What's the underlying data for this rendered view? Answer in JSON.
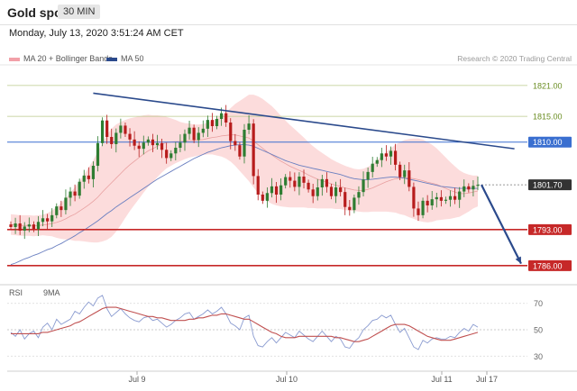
{
  "header": {
    "title": "Gold spot",
    "timeframe": "30 MIN"
  },
  "timestamp": "Monday, July 13, 2020 3:51:24 AM CET",
  "legend": {
    "bollinger": "MA 20 + Bollinger Bands",
    "ma50": "MA 50"
  },
  "credit": "Research © 2020 Trading Central",
  "rsi_legend": {
    "rsi": "RSI",
    "ma": "9MA"
  },
  "colors": {
    "bull": "#2e7d32",
    "bear": "#b71c1c",
    "bands_fill": "#fbd0d0",
    "ma20": "#e8a0a0",
    "ma50": "#6a7fc0",
    "trendline": "#2b4a8c",
    "support": "#c62828",
    "resistance_blue": "#3a6fd0",
    "fib_green": "#b9c98a",
    "price_tag": "#333333",
    "rsi": "#8a9bd0",
    "rsi_ma": "#c05050"
  },
  "chart_data": [
    {
      "type": "candlestick",
      "title": "Gold spot",
      "timeframe": "30 MIN",
      "x_tick_labels": [
        "Jul 9",
        "Jul 10",
        "Jul 11",
        "Jul 17"
      ],
      "ylim": [
        1783,
        1825
      ],
      "y_tick_labels": [
        "1821.00",
        "1815.00",
        "1810.00",
        "1801.70",
        "1793.00",
        "1786.00"
      ],
      "horizontal_levels": [
        {
          "value": 1821.0,
          "label": "1821.00",
          "style": "green-thin",
          "tag": false
        },
        {
          "value": 1815.0,
          "label": "1815.00",
          "style": "green-thin",
          "tag": false
        },
        {
          "value": 1810.0,
          "label": "1810.00",
          "style": "blue",
          "tag": true
        },
        {
          "value": 1801.7,
          "label": "1801.70",
          "style": "current-price",
          "tag": true
        },
        {
          "value": 1793.0,
          "label": "1793.00",
          "style": "red",
          "tag": true
        },
        {
          "value": 1786.0,
          "label": "1786.00",
          "style": "red",
          "tag": true
        }
      ],
      "trendline": [
        [
          18,
          1819.5
        ],
        [
          110,
          1808.7
        ]
      ],
      "projection_arrow": [
        [
          110,
          1801.7
        ],
        [
          120,
          1786.4
        ]
      ],
      "ohlc_close": [
        1793.5,
        1794.2,
        1792.8,
        1793.6,
        1794.0,
        1793.1,
        1794.5,
        1795.2,
        1794.6,
        1795.8,
        1797.5,
        1796.8,
        1799.2,
        1800.4,
        1799.6,
        1802.3,
        1803.5,
        1802.8,
        1805.4,
        1809.8,
        1814.2,
        1811.0,
        1809.6,
        1811.8,
        1813.2,
        1811.6,
        1810.5,
        1809.3,
        1808.7,
        1809.9,
        1810.5,
        1809.4,
        1809.8,
        1808.5,
        1806.9,
        1807.8,
        1808.9,
        1809.9,
        1811.6,
        1812.8,
        1810.4,
        1811.8,
        1812.6,
        1814.3,
        1813.1,
        1814.5,
        1815.6,
        1813.8,
        1810.2,
        1809.4,
        1807.2,
        1812.4,
        1813.6,
        1803.4,
        1799.8,
        1798.6,
        1800.1,
        1801.4,
        1799.8,
        1801.6,
        1803.2,
        1802.5,
        1801.3,
        1803.3,
        1802.1,
        1800.8,
        1799.5,
        1801.2,
        1802.8,
        1801.3,
        1799.5,
        1801.2,
        1800.3,
        1797.4,
        1796.8,
        1799.2,
        1800.3,
        1802.7,
        1804.2,
        1805.8,
        1806.5,
        1807.8,
        1807.2,
        1808.3,
        1805.6,
        1803.2,
        1804.5,
        1801.3,
        1797.1,
        1795.8,
        1798.6,
        1797.7,
        1798.9,
        1799.3,
        1798.6,
        1798.8,
        1799.5,
        1798.8,
        1800.4,
        1801.4,
        1800.8,
        1801.5,
        1801.7
      ],
      "ohlc_open": [
        1794.0,
        1793.5,
        1794.2,
        1792.8,
        1793.6,
        1794.0,
        1793.1,
        1794.5,
        1795.2,
        1794.6,
        1795.8,
        1797.5,
        1796.8,
        1799.2,
        1800.4,
        1799.6,
        1802.3,
        1803.5,
        1802.8,
        1805.4,
        1809.8,
        1814.2,
        1811.0,
        1809.6,
        1811.8,
        1813.2,
        1811.6,
        1810.5,
        1809.3,
        1808.7,
        1809.9,
        1810.5,
        1809.4,
        1809.8,
        1808.5,
        1806.9,
        1807.8,
        1808.9,
        1809.9,
        1811.6,
        1812.8,
        1810.4,
        1811.8,
        1812.6,
        1814.3,
        1813.1,
        1814.5,
        1815.6,
        1813.8,
        1810.2,
        1809.4,
        1807.2,
        1812.4,
        1813.6,
        1803.4,
        1799.8,
        1798.6,
        1800.1,
        1801.4,
        1799.8,
        1801.6,
        1803.2,
        1802.5,
        1801.3,
        1803.3,
        1802.1,
        1800.8,
        1799.5,
        1801.2,
        1802.8,
        1801.3,
        1799.5,
        1801.2,
        1800.3,
        1797.4,
        1796.8,
        1799.2,
        1800.3,
        1802.7,
        1804.2,
        1805.8,
        1806.5,
        1807.8,
        1807.2,
        1808.3,
        1805.6,
        1803.2,
        1804.5,
        1801.3,
        1797.1,
        1795.8,
        1798.6,
        1797.7,
        1798.9,
        1799.3,
        1798.6,
        1798.8,
        1799.5,
        1798.8,
        1800.4,
        1801.4,
        1800.8,
        1801.5
      ],
      "ma50": [
        1786.2,
        1786.5,
        1786.9,
        1787.3,
        1787.6,
        1788.0,
        1788.3,
        1788.7,
        1789.1,
        1789.4,
        1789.9,
        1790.3,
        1790.8,
        1791.3,
        1791.8,
        1792.4,
        1792.9,
        1793.5,
        1794.1,
        1794.7,
        1795.4,
        1796.1,
        1796.7,
        1797.4,
        1798.0,
        1798.6,
        1799.2,
        1799.8,
        1800.4,
        1801.0,
        1801.6,
        1802.2,
        1802.8,
        1803.3,
        1803.8,
        1804.3,
        1804.8,
        1805.3,
        1805.8,
        1806.3,
        1806.8,
        1807.2,
        1807.6,
        1808.0,
        1808.3,
        1808.6,
        1808.9,
        1809.1,
        1809.3,
        1809.4,
        1809.5,
        1809.5,
        1809.4,
        1809.2,
        1808.8,
        1808.4,
        1808.0,
        1807.6,
        1807.2,
        1806.8,
        1806.4,
        1806.1,
        1805.8,
        1805.5,
        1805.3,
        1805.1,
        1804.9,
        1804.7,
        1804.5,
        1804.3,
        1804.1,
        1803.9,
        1803.7,
        1803.4,
        1803.1,
        1802.9,
        1802.8,
        1802.7,
        1802.7,
        1802.8,
        1802.9,
        1803.0,
        1803.1,
        1803.2,
        1803.2,
        1803.1,
        1803.0,
        1802.8,
        1802.6,
        1802.4,
        1802.2,
        1802.0,
        1801.8,
        1801.6,
        1801.4,
        1801.3,
        1801.2,
        1801.1,
        1801.0,
        1801.0,
        1801.0,
        1801.0,
        1801.0
      ],
      "ma20_center": [
        1794.0,
        1793.9,
        1793.8,
        1793.8,
        1793.8,
        1793.7,
        1793.8,
        1793.9,
        1794.0,
        1794.2,
        1794.4,
        1794.7,
        1795.1,
        1795.6,
        1796.0,
        1796.6,
        1797.2,
        1797.8,
        1798.5,
        1799.3,
        1800.3,
        1801.2,
        1802.1,
        1803.0,
        1803.9,
        1804.8,
        1805.6,
        1806.3,
        1807.0,
        1807.7,
        1808.3,
        1808.7,
        1809.2,
        1809.6,
        1809.9,
        1810.0,
        1810.1,
        1810.1,
        1810.2,
        1810.3,
        1810.3,
        1810.4,
        1810.5,
        1810.7,
        1810.9,
        1811.0,
        1811.2,
        1811.3,
        1811.4,
        1811.4,
        1811.2,
        1811.0,
        1810.8,
        1810.2,
        1809.5,
        1808.8,
        1808.1,
        1807.5,
        1806.9,
        1806.3,
        1805.8,
        1805.3,
        1804.9,
        1804.5,
        1804.1,
        1803.6,
        1803.2,
        1802.8,
        1802.5,
        1802.2,
        1801.9,
        1801.6,
        1801.4,
        1801.1,
        1800.9,
        1800.7,
        1800.6,
        1800.6,
        1800.8,
        1801.1,
        1801.5,
        1801.9,
        1802.3,
        1802.6,
        1802.9,
        1803.0,
        1803.1,
        1803.0,
        1802.9,
        1802.7,
        1802.5,
        1802.2,
        1802.0,
        1801.8,
        1801.4,
        1801.0,
        1800.6,
        1800.3,
        1800.0,
        1800.0,
        1800.1,
        1800.3,
        1800.5
      ],
      "band_width": [
        2.0,
        2.0,
        2.0,
        2.0,
        2.0,
        2.0,
        2.0,
        2.0,
        2.2,
        2.5,
        3.0,
        3.5,
        4.0,
        4.6,
        5.2,
        5.8,
        6.5,
        7.2,
        8.0,
        8.8,
        9.6,
        10.2,
        10.5,
        10.4,
        10.0,
        9.5,
        9.0,
        8.5,
        8.0,
        7.5,
        7.0,
        6.5,
        6.0,
        5.5,
        5.0,
        4.6,
        4.2,
        3.8,
        3.5,
        3.3,
        3.1,
        3.0,
        3.0,
        3.1,
        3.3,
        3.6,
        4.0,
        4.5,
        5.2,
        6.0,
        6.8,
        7.6,
        8.4,
        9.0,
        9.4,
        9.6,
        9.6,
        9.5,
        9.2,
        8.8,
        8.4,
        8.0,
        7.6,
        7.2,
        6.8,
        6.4,
        6.0,
        5.7,
        5.4,
        5.1,
        4.8,
        4.6,
        4.4,
        4.3,
        4.2,
        4.1,
        4.1,
        4.2,
        4.4,
        4.6,
        5.0,
        5.4,
        5.8,
        6.2,
        6.6,
        7.0,
        7.3,
        7.6,
        7.8,
        8.0,
        8.0,
        7.8,
        7.5,
        7.0,
        6.5,
        6.0,
        5.5,
        5.0,
        4.5,
        4.0,
        3.6,
        3.2,
        3.0
      ]
    },
    {
      "type": "line",
      "title": "RSI",
      "ylim": [
        20,
        80
      ],
      "y_tick_labels": [
        "70",
        "50",
        "30"
      ],
      "series": [
        {
          "name": "RSI",
          "values": [
            48,
            45,
            50,
            43,
            47,
            49,
            44,
            52,
            55,
            50,
            58,
            54,
            56,
            58,
            64,
            62,
            67,
            71,
            68,
            74,
            76,
            66,
            60,
            63,
            66,
            62,
            59,
            57,
            56,
            59,
            60,
            57,
            58,
            55,
            52,
            54,
            57,
            59,
            62,
            63,
            58,
            60,
            62,
            65,
            62,
            64,
            67,
            62,
            55,
            53,
            50,
            59,
            61,
            45,
            38,
            37,
            41,
            44,
            40,
            44,
            48,
            46,
            44,
            49,
            46,
            43,
            41,
            45,
            49,
            45,
            41,
            45,
            43,
            37,
            36,
            41,
            44,
            50,
            53,
            57,
            58,
            61,
            59,
            61,
            54,
            48,
            51,
            44,
            37,
            35,
            42,
            40,
            43,
            44,
            43,
            43,
            45,
            44,
            48,
            51,
            49,
            54,
            52
          ]
        },
        {
          "name": "9MA",
          "values": [
            47,
            47,
            47,
            47,
            47,
            47,
            47,
            48,
            48,
            49,
            50,
            51,
            52,
            53,
            55,
            56,
            58,
            60,
            62,
            64,
            66,
            67,
            67,
            67,
            66,
            65,
            64,
            63,
            62,
            61,
            60,
            60,
            59,
            59,
            58,
            57,
            57,
            57,
            57,
            58,
            58,
            59,
            59,
            60,
            61,
            61,
            62,
            62,
            61,
            60,
            59,
            58,
            58,
            56,
            54,
            52,
            50,
            48,
            47,
            45,
            44,
            44,
            44,
            45,
            45,
            45,
            45,
            45,
            45,
            45,
            45,
            44,
            44,
            43,
            42,
            41,
            41,
            42,
            43,
            45,
            47,
            49,
            51,
            53,
            54,
            54,
            54,
            53,
            51,
            49,
            47,
            45,
            44,
            43,
            42,
            42,
            42,
            43,
            44,
            45,
            46,
            47,
            48
          ]
        }
      ]
    }
  ]
}
